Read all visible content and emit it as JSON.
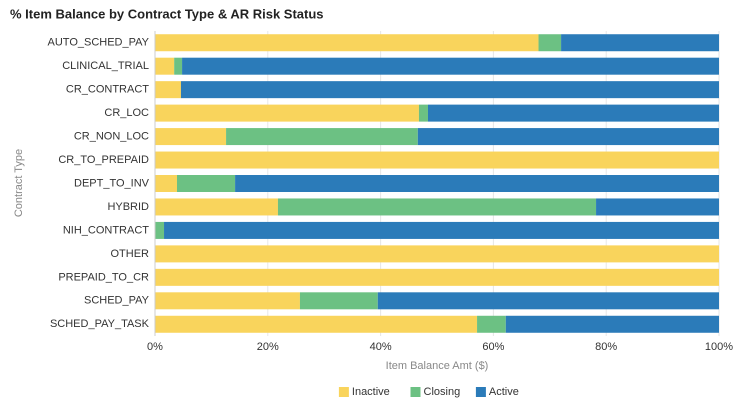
{
  "chart_data": {
    "type": "stacked_barh",
    "title": "% Item Balance by Contract Type & AR Risk Status",
    "xlabel": "Item Balance Amt ($)",
    "ylabel": "Contract Type",
    "categories": [
      "AUTO_SCHED_PAY",
      "CLINICAL_TRIAL",
      "CR_CONTRACT",
      "CR_LOC",
      "CR_NON_LOC",
      "CR_TO_PREPAID",
      "DEPT_TO_INV",
      "HYBRID",
      "NIH_CONTRACT",
      "OTHER",
      "PREPAID_TO_CR",
      "SCHED_PAY",
      "SCHED_PAY_TASK"
    ],
    "series": [
      {
        "name": "Inactive",
        "color": "#f9d45c",
        "values": [
          68,
          3.4,
          4.6,
          46.8,
          12.6,
          100,
          3.9,
          21.8,
          0,
          100,
          100,
          25.7,
          57.1
        ]
      },
      {
        "name": "Closing",
        "color": "#6cc183",
        "values": [
          4,
          1.4,
          0,
          1.6,
          34,
          0,
          10.3,
          56.4,
          1.6,
          0,
          0,
          13.8,
          5.1
        ]
      },
      {
        "name": "Active",
        "color": "#2b7bb9",
        "values": [
          28,
          95.2,
          95.4,
          51.6,
          53.4,
          0,
          85.8,
          21.8,
          98.4,
          0,
          0,
          60.5,
          37.8
        ]
      }
    ],
    "xlim": [
      0,
      100
    ],
    "xticks": [
      {
        "value": 0,
        "label": "0%"
      },
      {
        "value": 20,
        "label": "20%"
      },
      {
        "value": 40,
        "label": "40%"
      },
      {
        "value": 60,
        "label": "60%"
      },
      {
        "value": 80,
        "label": "80%"
      },
      {
        "value": 100,
        "label": "100%"
      }
    ],
    "grid": true,
    "legend": "bottom"
  }
}
